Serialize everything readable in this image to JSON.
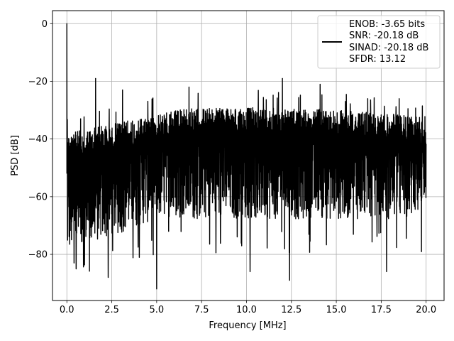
{
  "chart_data": {
    "type": "line",
    "xlabel": "Frequency [MHz]",
    "ylabel": "PSD [dB]",
    "xlim": [
      -0.8,
      21.0
    ],
    "ylim": [
      -96,
      4.5
    ],
    "xticks": [
      0.0,
      2.5,
      5.0,
      7.5,
      10.0,
      12.5,
      15.0,
      17.5,
      20.0
    ],
    "xtick_labels": [
      "0.0",
      "2.5",
      "5.0",
      "7.5",
      "10.0",
      "12.5",
      "15.0",
      "17.5",
      "20.0"
    ],
    "yticks": [
      0,
      -20,
      -40,
      -60,
      -80
    ],
    "ytick_labels": [
      "0",
      "−20",
      "−40",
      "−60",
      "−80"
    ],
    "grid": true,
    "legend_position": "top-right",
    "series": [
      {
        "color": "#000000",
        "x_range": [
          0.0,
          20.0
        ],
        "noise_floor_upper_db": [
          -34,
          -28
        ],
        "noise_floor_lower_db": [
          -80,
          -68
        ],
        "peaks": [
          {
            "x": 0.0,
            "y": 0.0
          },
          {
            "x": 1.6,
            "y": -19
          },
          {
            "x": 3.1,
            "y": -23
          },
          {
            "x": 6.8,
            "y": -22
          },
          {
            "x": 12.0,
            "y": -19
          },
          {
            "x": 14.1,
            "y": -21
          },
          {
            "x": 18.5,
            "y": -26
          }
        ],
        "dips": [
          {
            "x": 0.4,
            "y": -83
          },
          {
            "x": 2.3,
            "y": -88
          },
          {
            "x": 5.0,
            "y": -92
          },
          {
            "x": 10.2,
            "y": -86
          },
          {
            "x": 12.4,
            "y": -89
          },
          {
            "x": 17.8,
            "y": -86
          }
        ]
      }
    ],
    "legend_lines": [
      "ENOB: -3.65 bits",
      "SNR: -20.18 dB",
      "SINAD: -20.18 dB",
      "SFDR: 13.12"
    ]
  }
}
